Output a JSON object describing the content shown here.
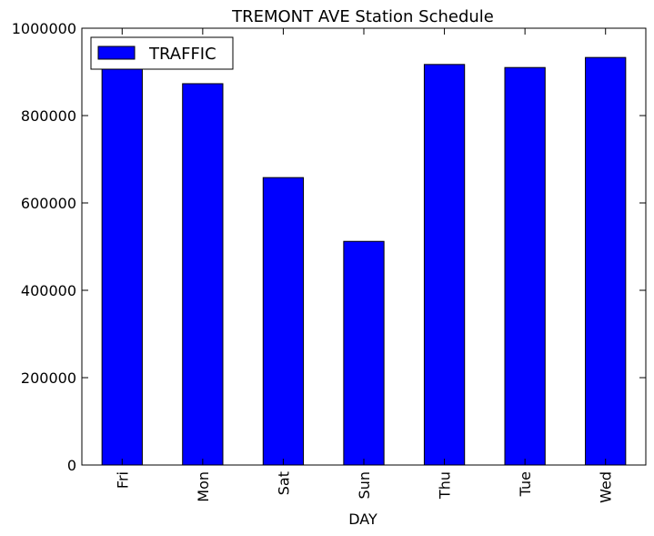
{
  "chart_data": {
    "type": "bar",
    "title": "TREMONT AVE Station Schedule",
    "xlabel": "DAY",
    "ylabel": "",
    "categories": [
      "Fri",
      "Mon",
      "Sat",
      "Sun",
      "Thu",
      "Tue",
      "Wed"
    ],
    "series": [
      {
        "name": "TRAFFIC",
        "values": [
          908000,
          873000,
          658000,
          512000,
          917000,
          910000,
          933000
        ]
      }
    ],
    "ylim": [
      0,
      1000000
    ],
    "yticks": [
      "0",
      "200000",
      "400000",
      "600000",
      "800000",
      "1000000"
    ],
    "grid": false,
    "legend_position": "top-left",
    "colors": {
      "bar": "#0000ff",
      "edge": "#000000"
    }
  }
}
